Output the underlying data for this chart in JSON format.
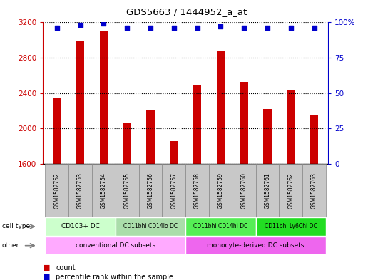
{
  "title": "GDS5663 / 1444952_a_at",
  "samples": [
    "GSM1582752",
    "GSM1582753",
    "GSM1582754",
    "GSM1582755",
    "GSM1582756",
    "GSM1582757",
    "GSM1582758",
    "GSM1582759",
    "GSM1582760",
    "GSM1582761",
    "GSM1582762",
    "GSM1582763"
  ],
  "counts": [
    2350,
    2990,
    3100,
    2060,
    2210,
    1860,
    2490,
    2870,
    2530,
    2220,
    2430,
    2150
  ],
  "percentiles": [
    96,
    98,
    99,
    96,
    96,
    96,
    96,
    97,
    96,
    96,
    96,
    96
  ],
  "ylim_left": [
    1600,
    3200
  ],
  "ylim_right": [
    0,
    100
  ],
  "yticks_left": [
    1600,
    2000,
    2400,
    2800,
    3200
  ],
  "yticks_right": [
    0,
    25,
    50,
    75,
    100
  ],
  "bar_color": "#cc0000",
  "dot_color": "#0000cc",
  "cell_type_groups": [
    {
      "label": "CD103+ DC",
      "start": 0,
      "end": 2,
      "color": "#ccffcc"
    },
    {
      "label": "CD11bhi CD14lo DC",
      "start": 3,
      "end": 5,
      "color": "#aaddaa"
    },
    {
      "label": "CD11bhi CD14hi DC",
      "start": 6,
      "end": 8,
      "color": "#55ee55"
    },
    {
      "label": "CD11bhi Ly6Chi DC",
      "start": 9,
      "end": 11,
      "color": "#22dd22"
    }
  ],
  "other_groups": [
    {
      "label": "conventional DC subsets",
      "start": 0,
      "end": 5,
      "color": "#ffaaff"
    },
    {
      "label": "monocyte-derived DC subsets",
      "start": 6,
      "end": 11,
      "color": "#ee66ee"
    }
  ],
  "legend_count_label": "count",
  "legend_percentile_label": "percentile rank within the sample",
  "bg_color": "#ffffff",
  "xticklabel_bg": "#c8c8c8",
  "xticklabel_border": "#888888"
}
